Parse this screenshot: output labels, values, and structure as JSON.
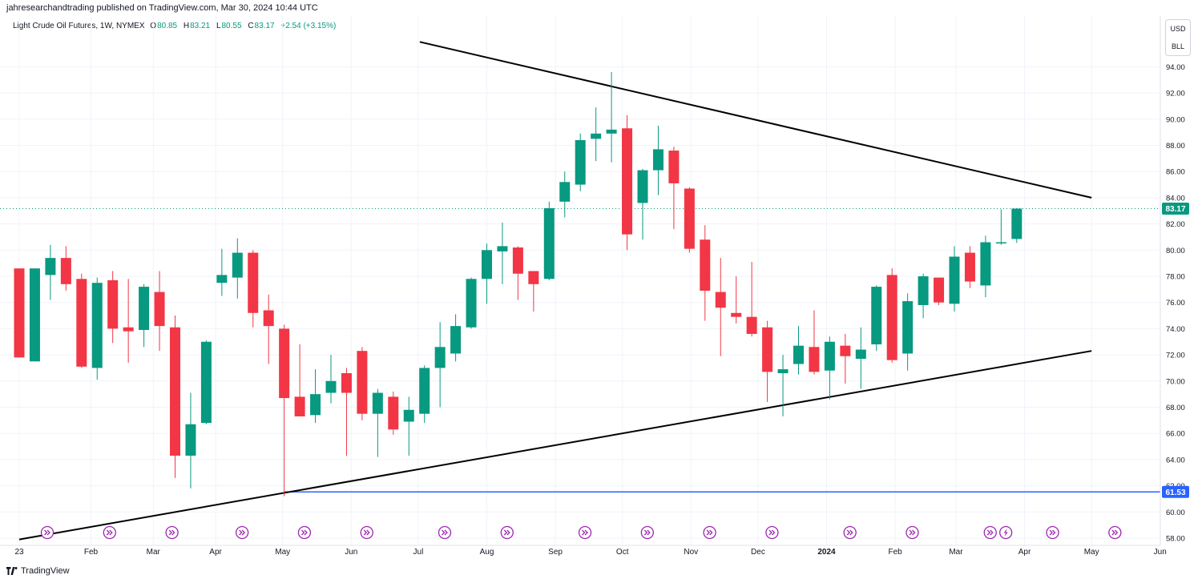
{
  "header": {
    "publisher": "jahresearchandtrading published on TradingView.com, Mar 30, 2024 10:44 UTC",
    "symbol": "Light Crude Oil Futures, 1W, NYMEX",
    "open_label": "O",
    "open": "80.85",
    "high_label": "H",
    "high": "83.21",
    "low_label": "L",
    "low": "80.55",
    "close_label": "C",
    "close": "83.17",
    "change": "+2.54 (+3.15%)"
  },
  "unit_box": {
    "currency": "USD",
    "unit": "BLL"
  },
  "footer": {
    "brand": "TradingView"
  },
  "colors": {
    "up": "#089981",
    "down": "#f23645",
    "trendline": "#000000",
    "support": "#2962ff",
    "event": "#9c27b0",
    "grid": "#f0f3fa"
  },
  "chart_data": {
    "type": "candlestick",
    "y_axis": {
      "min": 57.0,
      "max": 96.0,
      "ticks": [
        "58.00",
        "60.00",
        "62.00",
        "64.00",
        "66.00",
        "68.00",
        "70.00",
        "72.00",
        "74.00",
        "76.00",
        "78.00",
        "80.00",
        "82.00",
        "84.00",
        "86.00",
        "88.00",
        "90.00",
        "92.00",
        "94.00"
      ],
      "position": "right"
    },
    "x_axis": {
      "ticks": [
        {
          "label": "23",
          "index": 0
        },
        {
          "label": "Feb",
          "index": 4.6
        },
        {
          "label": "Mar",
          "index": 8.6
        },
        {
          "label": "Apr",
          "index": 12.6
        },
        {
          "label": "May",
          "index": 16.9
        },
        {
          "label": "Jun",
          "index": 21.3
        },
        {
          "label": "Jul",
          "index": 25.6
        },
        {
          "label": "Aug",
          "index": 30.0
        },
        {
          "label": "Sep",
          "index": 34.4
        },
        {
          "label": "Oct",
          "index": 38.7
        },
        {
          "label": "Nov",
          "index": 43.1
        },
        {
          "label": "Dec",
          "index": 47.4
        },
        {
          "label": "2024",
          "index": 51.8
        },
        {
          "label": "Feb",
          "index": 56.2
        },
        {
          "label": "Mar",
          "index": 60.1
        },
        {
          "label": "Apr",
          "index": 64.5
        },
        {
          "label": "May",
          "index": 68.8
        },
        {
          "label": "Jun",
          "index": 73.2
        }
      ]
    },
    "candles": [
      {
        "o": 78.6,
        "h": 78.6,
        "l": 71.8,
        "c": 71.8
      },
      {
        "o": 71.5,
        "h": 78.6,
        "l": 71.5,
        "c": 78.6
      },
      {
        "o": 78.1,
        "h": 80.4,
        "l": 76.2,
        "c": 79.4
      },
      {
        "o": 79.4,
        "h": 80.3,
        "l": 76.9,
        "c": 77.4
      },
      {
        "o": 77.8,
        "h": 78.2,
        "l": 71.0,
        "c": 71.1
      },
      {
        "o": 71.0,
        "h": 77.9,
        "l": 70.1,
        "c": 77.5
      },
      {
        "o": 77.7,
        "h": 78.4,
        "l": 72.9,
        "c": 74.0
      },
      {
        "o": 74.1,
        "h": 77.8,
        "l": 71.4,
        "c": 73.8
      },
      {
        "o": 73.9,
        "h": 77.4,
        "l": 72.6,
        "c": 77.2
      },
      {
        "o": 76.8,
        "h": 78.4,
        "l": 72.3,
        "c": 74.2
      },
      {
        "o": 74.1,
        "h": 75.0,
        "l": 62.6,
        "c": 64.3
      },
      {
        "o": 64.3,
        "h": 69.1,
        "l": 61.8,
        "c": 66.7
      },
      {
        "o": 66.8,
        "h": 73.1,
        "l": 66.7,
        "c": 73.0
      },
      {
        "o": 77.5,
        "h": 80.1,
        "l": 76.5,
        "c": 78.1
      },
      {
        "o": 77.9,
        "h": 80.9,
        "l": 76.3,
        "c": 79.8
      },
      {
        "o": 79.8,
        "h": 80.0,
        "l": 74.1,
        "c": 75.2
      },
      {
        "o": 75.4,
        "h": 76.6,
        "l": 71.3,
        "c": 74.2
      },
      {
        "o": 74.0,
        "h": 74.3,
        "l": 61.2,
        "c": 68.7
      },
      {
        "o": 68.8,
        "h": 72.8,
        "l": 67.4,
        "c": 67.3
      },
      {
        "o": 67.4,
        "h": 70.9,
        "l": 66.8,
        "c": 69.0
      },
      {
        "o": 69.1,
        "h": 72.0,
        "l": 68.3,
        "c": 70.0
      },
      {
        "o": 70.6,
        "h": 71.0,
        "l": 64.3,
        "c": 69.1
      },
      {
        "o": 72.3,
        "h": 72.6,
        "l": 67.0,
        "c": 67.5
      },
      {
        "o": 67.5,
        "h": 69.4,
        "l": 64.2,
        "c": 69.1
      },
      {
        "o": 68.8,
        "h": 69.2,
        "l": 65.9,
        "c": 66.3
      },
      {
        "o": 66.9,
        "h": 68.8,
        "l": 64.3,
        "c": 67.8
      },
      {
        "o": 67.5,
        "h": 71.2,
        "l": 66.8,
        "c": 71.0
      },
      {
        "o": 71.0,
        "h": 74.5,
        "l": 68.0,
        "c": 72.6
      },
      {
        "o": 72.1,
        "h": 75.1,
        "l": 71.5,
        "c": 74.2
      },
      {
        "o": 74.1,
        "h": 77.9,
        "l": 74.0,
        "c": 77.8
      },
      {
        "o": 77.8,
        "h": 80.5,
        "l": 75.9,
        "c": 80.0
      },
      {
        "o": 79.9,
        "h": 82.1,
        "l": 77.4,
        "c": 80.3
      },
      {
        "o": 80.2,
        "h": 80.3,
        "l": 76.2,
        "c": 78.2
      },
      {
        "o": 78.4,
        "h": 78.3,
        "l": 75.3,
        "c": 77.4
      },
      {
        "o": 77.8,
        "h": 83.7,
        "l": 77.7,
        "c": 83.2
      },
      {
        "o": 83.7,
        "h": 86.0,
        "l": 82.5,
        "c": 85.2
      },
      {
        "o": 85.0,
        "h": 88.9,
        "l": 84.5,
        "c": 88.4
      },
      {
        "o": 88.5,
        "h": 90.9,
        "l": 86.8,
        "c": 88.9
      },
      {
        "o": 88.9,
        "h": 93.6,
        "l": 86.7,
        "c": 89.2
      },
      {
        "o": 89.3,
        "h": 90.3,
        "l": 80.0,
        "c": 81.2
      },
      {
        "o": 83.6,
        "h": 86.2,
        "l": 80.8,
        "c": 86.1
      },
      {
        "o": 86.1,
        "h": 89.5,
        "l": 84.2,
        "c": 87.7
      },
      {
        "o": 87.6,
        "h": 87.9,
        "l": 81.6,
        "c": 85.1
      },
      {
        "o": 84.7,
        "h": 84.8,
        "l": 79.8,
        "c": 80.1
      },
      {
        "o": 80.8,
        "h": 81.9,
        "l": 74.6,
        "c": 76.9
      },
      {
        "o": 76.8,
        "h": 79.4,
        "l": 71.9,
        "c": 75.6
      },
      {
        "o": 75.2,
        "h": 78.0,
        "l": 74.4,
        "c": 74.9
      },
      {
        "o": 74.9,
        "h": 79.1,
        "l": 73.4,
        "c": 73.6
      },
      {
        "o": 74.1,
        "h": 74.6,
        "l": 68.4,
        "c": 70.7
      },
      {
        "o": 70.6,
        "h": 72.0,
        "l": 67.3,
        "c": 70.9
      },
      {
        "o": 71.3,
        "h": 74.2,
        "l": 70.5,
        "c": 72.7
      },
      {
        "o": 72.6,
        "h": 75.4,
        "l": 70.5,
        "c": 70.7
      },
      {
        "o": 70.8,
        "h": 73.4,
        "l": 68.6,
        "c": 73.0
      },
      {
        "o": 72.7,
        "h": 73.6,
        "l": 69.8,
        "c": 71.9
      },
      {
        "o": 71.7,
        "h": 74.1,
        "l": 69.4,
        "c": 72.4
      },
      {
        "o": 72.8,
        "h": 77.3,
        "l": 72.3,
        "c": 77.2
      },
      {
        "o": 78.1,
        "h": 78.6,
        "l": 71.4,
        "c": 71.6
      },
      {
        "o": 72.1,
        "h": 76.7,
        "l": 70.8,
        "c": 76.1
      },
      {
        "o": 75.8,
        "h": 78.2,
        "l": 74.8,
        "c": 78.0
      },
      {
        "o": 77.9,
        "h": 77.9,
        "l": 75.8,
        "c": 76.0
      },
      {
        "o": 75.9,
        "h": 80.3,
        "l": 75.3,
        "c": 79.5
      },
      {
        "o": 79.8,
        "h": 80.3,
        "l": 77.1,
        "c": 77.6
      },
      {
        "o": 77.3,
        "h": 81.1,
        "l": 76.4,
        "c": 80.6
      },
      {
        "o": 80.6,
        "h": 83.1,
        "l": 80.4,
        "c": 80.6
      },
      {
        "o": 80.85,
        "h": 83.21,
        "l": 80.55,
        "c": 83.17
      }
    ],
    "trendlines": [
      {
        "name": "upper-resistance",
        "from": {
          "index": 25.7,
          "price": 95.9
        },
        "to": {
          "index": 68.8,
          "price": 84.0
        }
      },
      {
        "name": "lower-support",
        "from": {
          "index": 0.0,
          "price": 57.9
        },
        "to": {
          "index": 68.8,
          "price": 72.3
        }
      }
    ],
    "horizontal_line": {
      "price": 61.53,
      "label": "61.53",
      "from_index": 17.0
    },
    "last_price_line": {
      "price": 83.17,
      "label": "83.17"
    },
    "event_markers": [
      {
        "index": 1.8
      },
      {
        "index": 5.8
      },
      {
        "index": 9.8
      },
      {
        "index": 14.3
      },
      {
        "index": 18.3
      },
      {
        "index": 22.3
      },
      {
        "index": 27.3
      },
      {
        "index": 31.3
      },
      {
        "index": 36.3
      },
      {
        "index": 40.3
      },
      {
        "index": 44.3
      },
      {
        "index": 48.3
      },
      {
        "index": 53.3
      },
      {
        "index": 57.3
      },
      {
        "index": 62.3
      },
      {
        "index": 63.3,
        "kind": "lightning"
      },
      {
        "index": 66.3
      },
      {
        "index": 70.3
      }
    ],
    "legend_position": "top-left"
  }
}
